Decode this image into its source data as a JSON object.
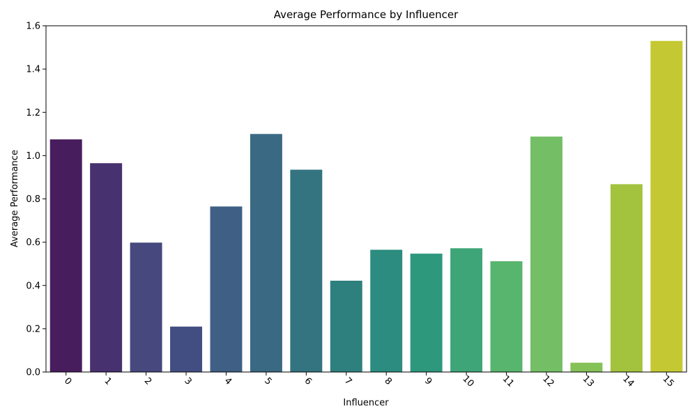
{
  "chart_data": {
    "type": "bar",
    "title": "Average Performance by Influencer",
    "xlabel": "Influencer",
    "ylabel": "Average Performance",
    "categories": [
      "0",
      "1",
      "2",
      "3",
      "4",
      "5",
      "6",
      "7",
      "8",
      "9",
      "10",
      "11",
      "12",
      "13",
      "14",
      "15"
    ],
    "values": [
      1.075,
      0.965,
      0.598,
      0.21,
      0.765,
      1.1,
      0.935,
      0.422,
      0.565,
      0.547,
      0.572,
      0.512,
      1.088,
      0.043,
      0.868,
      1.53
    ],
    "colors": [
      "#481d5e",
      "#48316f",
      "#47487e",
      "#424e82",
      "#3f6084",
      "#3a6a83",
      "#347480",
      "#2e807f",
      "#2b8c7f",
      "#2e987d",
      "#3ea579",
      "#58b56e",
      "#74bf66",
      "#84c157",
      "#a3c33f",
      "#c4c933"
    ],
    "ylim": [
      0,
      1.6
    ],
    "yticks": [
      "0.0",
      "0.2",
      "0.4",
      "0.6",
      "0.8",
      "1.0",
      "1.2",
      "1.4",
      "1.6"
    ],
    "grid": false,
    "legend": "none",
    "xtick_rotation": 45
  }
}
